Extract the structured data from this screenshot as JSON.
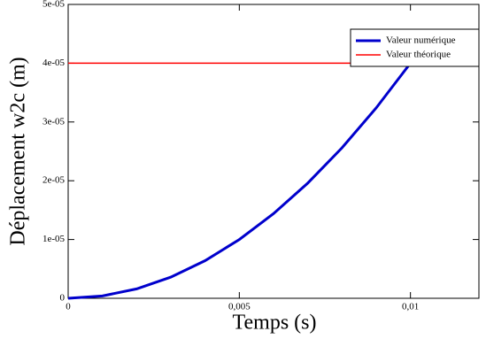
{
  "chart_data": {
    "type": "line",
    "x_label": "Temps (s)",
    "y_label": "Déplacement w2c (m)",
    "x": [
      0,
      0.001,
      0.002,
      0.003,
      0.004,
      0.005,
      0.006,
      0.007,
      0.008,
      0.009,
      0.01,
      0.011,
      0.012
    ],
    "series": [
      {
        "name": "Valeur numérique",
        "color": "#0000cc",
        "values": [
          0,
          4e-07,
          1.6e-06,
          3.6e-06,
          6.4e-06,
          1e-05,
          1.44e-05,
          1.96e-05,
          2.56e-05,
          3.24e-05,
          4e-05,
          4e-05,
          4e-05
        ]
      },
      {
        "name": "Valeur théorique",
        "color": "#ff0000",
        "values": [
          4e-05,
          4e-05,
          4e-05,
          4e-05,
          4e-05,
          4e-05,
          4e-05,
          4e-05,
          4e-05,
          4e-05,
          4e-05,
          4e-05,
          4e-05
        ]
      }
    ],
    "xlim": [
      0,
      0.012
    ],
    "ylim": [
      0,
      5e-05
    ],
    "xticks": [
      0,
      {
        "value": 0.005,
        "label": "0,005"
      },
      {
        "value": 0.01,
        "label": "0,01"
      }
    ],
    "yticks": [
      0,
      {
        "value": 1e-05,
        "label": "1e-05"
      },
      {
        "value": 2e-05,
        "label": "2e-05"
      },
      {
        "value": 3e-05,
        "label": "3e-05"
      },
      {
        "value": 4e-05,
        "label": "4e-05"
      },
      {
        "value": 5e-05,
        "label": "5e-05"
      }
    ],
    "legend": "upper right"
  }
}
